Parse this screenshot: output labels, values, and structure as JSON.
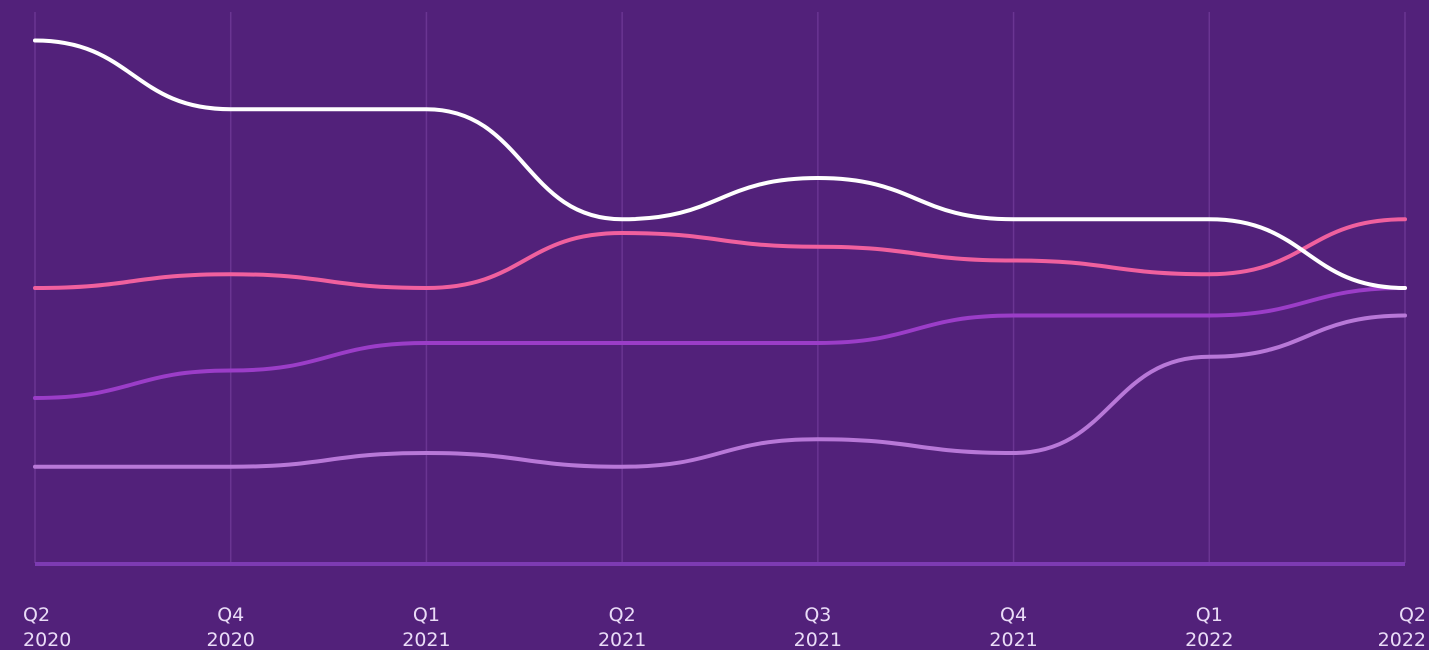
{
  "chart_data": {
    "type": "line",
    "categories": [
      [
        "Q2",
        "2020"
      ],
      [
        "Q4",
        "2020"
      ],
      [
        "Q1",
        "2021"
      ],
      [
        "Q2",
        "2021"
      ],
      [
        "Q3",
        "2021"
      ],
      [
        "Q4",
        "2021"
      ],
      [
        "Q1",
        "2022"
      ],
      [
        "Q2",
        "2022"
      ]
    ],
    "series": [
      {
        "color": "#ffffff",
        "values": [
          19,
          16.5,
          16.5,
          12.5,
          14,
          12.5,
          12.5,
          10
        ]
      },
      {
        "color": "#f0609e",
        "values": [
          10,
          10.5,
          10,
          12,
          11.5,
          11,
          10.5,
          12.5
        ]
      },
      {
        "color": "#9b3dc8",
        "values": [
          6,
          7,
          8,
          8,
          8,
          9,
          9,
          10
        ]
      },
      {
        "color": "#b878d8",
        "values": [
          3.5,
          3.5,
          4,
          3.5,
          4.5,
          4,
          7.5,
          9
        ]
      }
    ],
    "ylim": [
      0,
      20
    ],
    "grid": true
  }
}
